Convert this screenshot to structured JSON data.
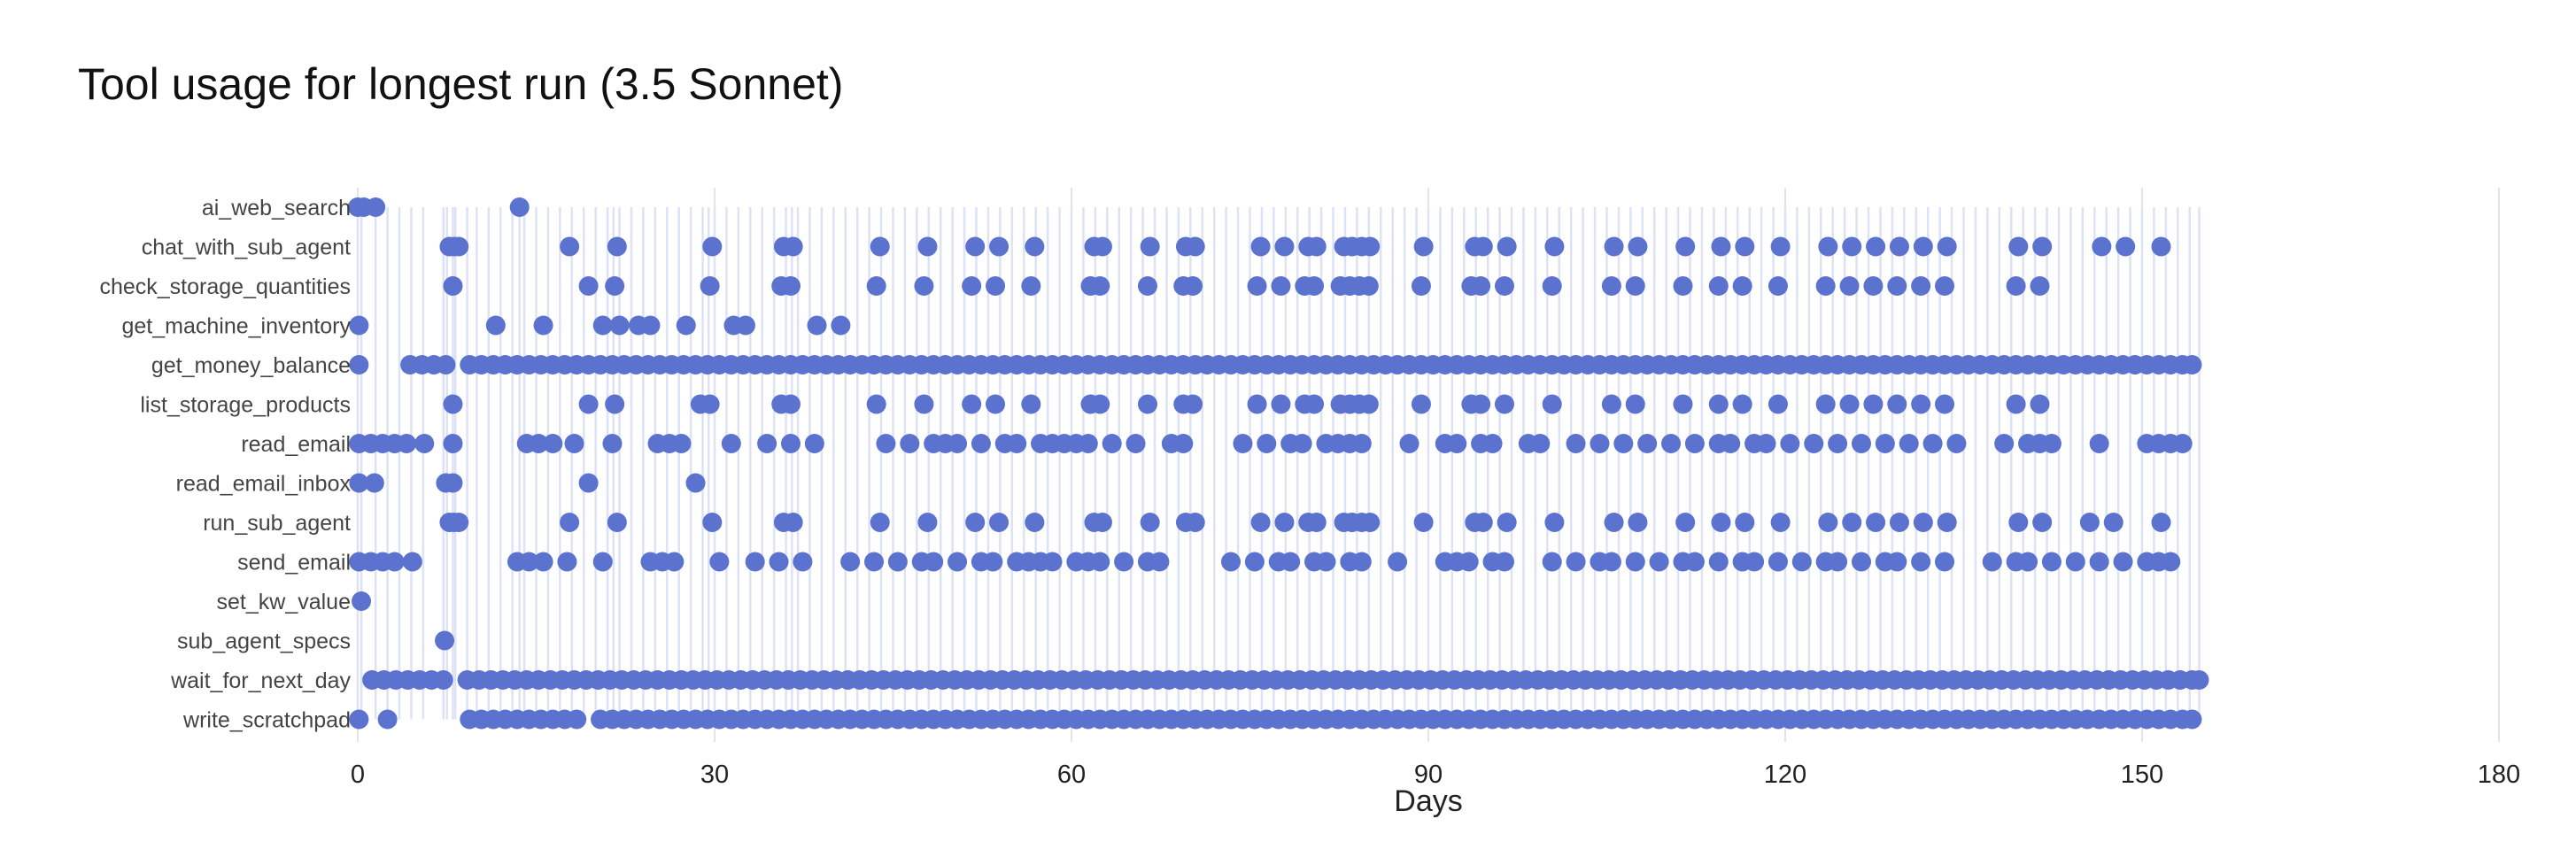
{
  "chart_data": {
    "type": "scatter",
    "title": "Tool usage for longest run (3.5 Sonnet)",
    "xlabel": "Days",
    "ylabel": "",
    "xlim": [
      0,
      180
    ],
    "xticks": [
      0,
      30,
      60,
      90,
      120,
      150,
      180
    ],
    "grid": "vertical",
    "marker_color": "#5b72cf",
    "stem_color": "#dde2f5",
    "categories": [
      "ai_web_search",
      "chat_with_sub_agent",
      "check_storage_quantities",
      "get_machine_inventory",
      "get_money_balance",
      "list_storage_products",
      "read_email",
      "read_email_inbox",
      "run_sub_agent",
      "send_email",
      "set_kw_value",
      "sub_agent_specs",
      "wait_for_next_day",
      "write_scratchpad"
    ],
    "stem_days": [
      0,
      0.3,
      1.5,
      2.5,
      3.5,
      4.5,
      5.5,
      7.2,
      7.5,
      8,
      8.2,
      9.2,
      10,
      11,
      12,
      13,
      13.6,
      14,
      15,
      16,
      17,
      18,
      19,
      20,
      21,
      21.5,
      22,
      23,
      24,
      25,
      26,
      27,
      28,
      29,
      29.5,
      30,
      31,
      32,
      33,
      34,
      35,
      36,
      36.5,
      37,
      38,
      39,
      40,
      41,
      42,
      43,
      44,
      45,
      46,
      47,
      48,
      49,
      50,
      51,
      52,
      53,
      54,
      55,
      56,
      57,
      58,
      59,
      60,
      61,
      62,
      63,
      64,
      65,
      66,
      67,
      68,
      69,
      70,
      71,
      72,
      73,
      74,
      75,
      76,
      77,
      78,
      79,
      80,
      81,
      82,
      83,
      84,
      85,
      86,
      87,
      88,
      89,
      90,
      91,
      92,
      93,
      94,
      95,
      96,
      97,
      98,
      99,
      100,
      101,
      102,
      103,
      104,
      105,
      106,
      107,
      108,
      109,
      110,
      111,
      112,
      113,
      114,
      115,
      116,
      117,
      118,
      119,
      120,
      121,
      122,
      123,
      124,
      125,
      126,
      127,
      128,
      129,
      130,
      131,
      132,
      133,
      134,
      135,
      136,
      137,
      138,
      139,
      140,
      141,
      142,
      143,
      144,
      145,
      146,
      147,
      148,
      149,
      150,
      151,
      152,
      153,
      154,
      154.8
    ],
    "series": [
      {
        "name": "ai_web_search",
        "days": [
          0,
          0.5,
          1.5,
          13.6
        ]
      },
      {
        "name": "chat_with_sub_agent",
        "days": [
          7.7,
          8.1,
          8.5,
          17.8,
          21.8,
          29.8,
          35.8,
          36.6,
          43.9,
          47.9,
          51.9,
          53.9,
          56.9,
          61.9,
          62.6,
          66.6,
          69.6,
          70.4,
          75.9,
          77.9,
          79.9,
          80.6,
          82.9,
          83.6,
          84.4,
          85.1,
          89.6,
          93.9,
          94.6,
          96.6,
          100.6,
          105.6,
          107.6,
          111.6,
          114.6,
          116.6,
          119.6,
          123.6,
          125.6,
          127.6,
          129.6,
          131.6,
          133.6,
          139.6,
          141.6,
          146.6,
          148.6,
          151.6
        ]
      },
      {
        "name": "check_storage_quantities",
        "days": [
          8,
          19.4,
          21.6,
          29.6,
          35.6,
          36.4,
          43.6,
          47.6,
          51.6,
          53.6,
          56.6,
          61.6,
          62.4,
          66.4,
          69.4,
          70.2,
          75.6,
          77.6,
          79.6,
          80.4,
          82.6,
          83.4,
          84.2,
          85,
          89.4,
          93.6,
          94.4,
          96.4,
          100.4,
          105.4,
          107.4,
          111.4,
          114.4,
          116.4,
          119.4,
          123.4,
          125.4,
          127.4,
          129.4,
          131.4,
          133.4,
          139.4,
          141.4
        ]
      },
      {
        "name": "get_machine_inventory",
        "days": [
          0.1,
          11.6,
          15.6,
          20.6,
          22,
          23.6,
          24.6,
          27.6,
          31.6,
          32.6,
          38.6,
          40.6
        ]
      },
      {
        "name": "get_money_balance",
        "days": [
          0.1,
          4.4,
          5.4,
          6.4,
          7.4,
          9.4,
          10.4,
          11.4,
          12.4,
          13.4,
          14.4,
          15.4,
          16.4,
          17.4,
          18.4,
          19.4,
          20.4,
          21.4,
          22.4,
          23.4,
          24.4,
          25.4,
          26.4,
          27.4,
          28.4,
          29.4,
          30.4,
          31.4,
          32.4,
          33.4,
          34.4,
          35.4,
          36.4,
          37.4,
          38.4,
          39.4,
          40.4,
          41.4,
          42.4,
          43.4,
          44.4,
          45.4,
          46.4,
          47.4,
          48.4,
          49.4,
          50.4,
          51.4,
          52.4,
          53.4,
          54.4,
          55.4,
          56.4,
          57.4,
          58.4,
          59.4,
          60.4,
          61.4,
          62.4,
          63.4,
          64.4,
          65.4,
          66.4,
          67.4,
          68.4,
          69.4,
          70.4,
          71.4,
          72.4,
          73.4,
          74.4,
          75.4,
          76.4,
          77.4,
          78.4,
          79.4,
          80.4,
          81.4,
          82.4,
          83.4,
          84.4,
          85.4,
          86.4,
          87.4,
          88.4,
          89.4,
          90.4,
          91.4,
          92.4,
          93.4,
          94.4,
          95.4,
          96.4,
          97.4,
          98.4,
          99.4,
          100.4,
          101.4,
          102.4,
          103.4,
          104.4,
          105.4,
          106.4,
          107.4,
          108.4,
          109.4,
          110.4,
          111.4,
          112.4,
          113.4,
          114.4,
          115.4,
          116.4,
          117.4,
          118.4,
          119.4,
          120.4,
          121.4,
          122.4,
          123.4,
          124.4,
          125.4,
          126.4,
          127.4,
          128.4,
          129.4,
          130.4,
          131.4,
          132.4,
          133.4,
          134.4,
          135.4,
          136.4,
          137.4,
          138.4,
          139.4,
          140.4,
          141.4,
          142.4,
          143.4,
          144.4,
          145.4,
          146.4,
          147.4,
          148.4,
          149.4,
          150.4,
          151.4,
          152.4,
          153.4,
          154.2
        ]
      },
      {
        "name": "list_storage_products",
        "days": [
          8,
          19.4,
          21.6,
          28.8,
          29.6,
          35.6,
          36.4,
          43.6,
          47.6,
          51.6,
          53.6,
          56.6,
          61.6,
          62.4,
          66.4,
          69.4,
          70.2,
          75.6,
          77.6,
          79.6,
          80.4,
          82.6,
          83.4,
          84.2,
          85,
          89.4,
          93.6,
          94.4,
          96.4,
          100.4,
          105.4,
          107.4,
          111.4,
          114.4,
          116.4,
          119.4,
          123.4,
          125.4,
          127.4,
          129.4,
          131.4,
          133.4,
          139.4,
          141.4
        ]
      },
      {
        "name": "read_email",
        "days": [
          0.1,
          1.1,
          2.1,
          3.1,
          4.1,
          5.6,
          8,
          14.2,
          15.2,
          16.4,
          18.2,
          21.4,
          25.2,
          26.2,
          27.2,
          31.4,
          34.4,
          36.4,
          38.4,
          44.4,
          46.4,
          48.4,
          49.4,
          50.4,
          52.4,
          54.4,
          55.4,
          57.4,
          58.4,
          59.4,
          60.4,
          61.4,
          63.4,
          65.4,
          68.4,
          69.4,
          74.4,
          76.4,
          78.4,
          79.4,
          81.4,
          82.4,
          83.4,
          84.4,
          88.4,
          91.4,
          92.4,
          94.4,
          95.4,
          98.4,
          99.4,
          102.4,
          104.4,
          106.4,
          108.4,
          110.4,
          112.4,
          114.4,
          115.4,
          117.4,
          118.4,
          120.4,
          122.4,
          124.4,
          126.4,
          128.4,
          130.4,
          132.4,
          134.4,
          138.4,
          140.4,
          141.4,
          142.4,
          146.4,
          150.4,
          151.4,
          152.4,
          153.4
        ]
      },
      {
        "name": "read_email_inbox",
        "days": [
          0.1,
          1.4,
          7.4,
          8,
          19.4,
          28.4
        ]
      },
      {
        "name": "run_sub_agent",
        "days": [
          7.7,
          8.1,
          8.5,
          17.8,
          21.8,
          29.8,
          35.8,
          36.6,
          43.9,
          47.9,
          51.9,
          53.9,
          56.9,
          61.9,
          62.6,
          66.6,
          69.6,
          70.4,
          75.9,
          77.9,
          79.9,
          80.6,
          82.9,
          83.6,
          84.4,
          85.1,
          89.6,
          93.9,
          94.6,
          96.6,
          100.6,
          105.6,
          107.6,
          111.6,
          114.6,
          116.6,
          119.6,
          123.6,
          125.6,
          127.6,
          129.6,
          131.6,
          133.6,
          139.6,
          141.6,
          145.6,
          147.6,
          151.6
        ]
      },
      {
        "name": "send_email",
        "days": [
          0.1,
          1.1,
          2.1,
          3.1,
          4.6,
          13.4,
          14.4,
          15.6,
          17.6,
          20.6,
          24.6,
          25.6,
          26.6,
          30.4,
          33.4,
          35.4,
          37.4,
          41.4,
          43.4,
          45.4,
          47.4,
          48.4,
          50.4,
          52.4,
          53.4,
          55.4,
          56.4,
          57.4,
          58.4,
          60.4,
          61.4,
          62.4,
          64.4,
          66.4,
          67.4,
          73.4,
          75.4,
          77.4,
          78.4,
          80.4,
          81.4,
          83.4,
          84.4,
          87.4,
          91.4,
          92.4,
          93.4,
          95.4,
          96.4,
          100.4,
          102.4,
          104.4,
          105.4,
          107.4,
          109.4,
          111.4,
          112.4,
          114.4,
          116.4,
          117.4,
          119.4,
          121.4,
          123.4,
          124.4,
          126.4,
          128.4,
          129.4,
          131.4,
          133.4,
          137.4,
          139.4,
          140.4,
          142.4,
          144.4,
          146.4,
          148.4,
          150.4,
          151.4,
          152.4
        ]
      },
      {
        "name": "set_kw_value",
        "days": [
          0.3
        ]
      },
      {
        "name": "sub_agent_specs",
        "days": [
          7.3
        ]
      },
      {
        "name": "wait_for_next_day",
        "days": [
          1.2,
          2.2,
          3.2,
          4.2,
          5.2,
          6.2,
          7.2,
          9.2,
          10.2,
          11.2,
          12.2,
          13.2,
          14.2,
          15.2,
          16.2,
          17.2,
          18.2,
          19.2,
          20.2,
          21.2,
          22.2,
          23.2,
          24.2,
          25.2,
          26.2,
          27.2,
          28.2,
          29.2,
          30.2,
          31.2,
          32.2,
          33.2,
          34.2,
          35.2,
          36.2,
          37.2,
          38.2,
          39.2,
          40.2,
          41.2,
          42.2,
          43.2,
          44.2,
          45.2,
          46.2,
          47.2,
          48.2,
          49.2,
          50.2,
          51.2,
          52.2,
          53.2,
          54.2,
          55.2,
          56.2,
          57.2,
          58.2,
          59.2,
          60.2,
          61.2,
          62.2,
          63.2,
          64.2,
          65.2,
          66.2,
          67.2,
          68.2,
          69.2,
          70.2,
          71.2,
          72.2,
          73.2,
          74.2,
          75.2,
          76.2,
          77.2,
          78.2,
          79.2,
          80.2,
          81.2,
          82.2,
          83.2,
          84.2,
          85.2,
          86.2,
          87.2,
          88.2,
          89.2,
          90.2,
          91.2,
          92.2,
          93.2,
          94.2,
          95.2,
          96.2,
          97.2,
          98.2,
          99.2,
          100.2,
          101.2,
          102.2,
          103.2,
          104.2,
          105.2,
          106.2,
          107.2,
          108.2,
          109.2,
          110.2,
          111.2,
          112.2,
          113.2,
          114.2,
          115.2,
          116.2,
          117.2,
          118.2,
          119.2,
          120.2,
          121.2,
          122.2,
          123.2,
          124.2,
          125.2,
          126.2,
          127.2,
          128.2,
          129.2,
          130.2,
          131.2,
          132.2,
          133.2,
          134.2,
          135.2,
          136.2,
          137.2,
          138.2,
          139.2,
          140.2,
          141.2,
          142.2,
          143.2,
          144.2,
          145.2,
          146.2,
          147.2,
          148.2,
          149.2,
          150.2,
          151.2,
          152.2,
          153.2,
          154.2,
          154.8
        ]
      },
      {
        "name": "write_scratchpad",
        "days": [
          0.1,
          2.5,
          9.4,
          10.4,
          11.4,
          12.4,
          13.4,
          14.4,
          15.4,
          16.4,
          17.4,
          18.4,
          20.4,
          21.4,
          22.4,
          23.4,
          24.4,
          25.4,
          26.4,
          27.4,
          28.4,
          29.4,
          30.4,
          31.4,
          32.4,
          33.4,
          34.4,
          35.4,
          36.4,
          37.4,
          38.4,
          39.4,
          40.4,
          41.4,
          42.4,
          43.4,
          44.4,
          45.4,
          46.4,
          47.4,
          48.4,
          49.4,
          50.4,
          51.4,
          52.4,
          53.4,
          54.4,
          55.4,
          56.4,
          57.4,
          58.4,
          59.4,
          60.4,
          61.4,
          62.4,
          63.4,
          64.4,
          65.4,
          66.4,
          67.4,
          68.4,
          69.4,
          70.4,
          71.4,
          72.4,
          73.4,
          74.4,
          75.4,
          76.4,
          77.4,
          78.4,
          79.4,
          80.4,
          81.4,
          82.4,
          83.4,
          84.4,
          85.4,
          86.4,
          87.4,
          88.4,
          89.4,
          90.4,
          91.4,
          92.4,
          93.4,
          94.4,
          95.4,
          96.4,
          97.4,
          98.4,
          99.4,
          100.4,
          101.4,
          102.4,
          103.4,
          104.4,
          105.4,
          106.4,
          107.4,
          108.4,
          109.4,
          110.4,
          111.4,
          112.4,
          113.4,
          114.4,
          115.4,
          116.4,
          117.4,
          118.4,
          119.4,
          120.4,
          121.4,
          122.4,
          123.4,
          124.4,
          125.4,
          126.4,
          127.4,
          128.4,
          129.4,
          130.4,
          131.4,
          132.4,
          133.4,
          134.4,
          135.4,
          136.4,
          137.4,
          138.4,
          139.4,
          140.4,
          141.4,
          142.4,
          143.4,
          144.4,
          145.4,
          146.4,
          147.4,
          148.4,
          149.4,
          150.4,
          151.4,
          152.4,
          153.4,
          154.2
        ]
      }
    ]
  }
}
